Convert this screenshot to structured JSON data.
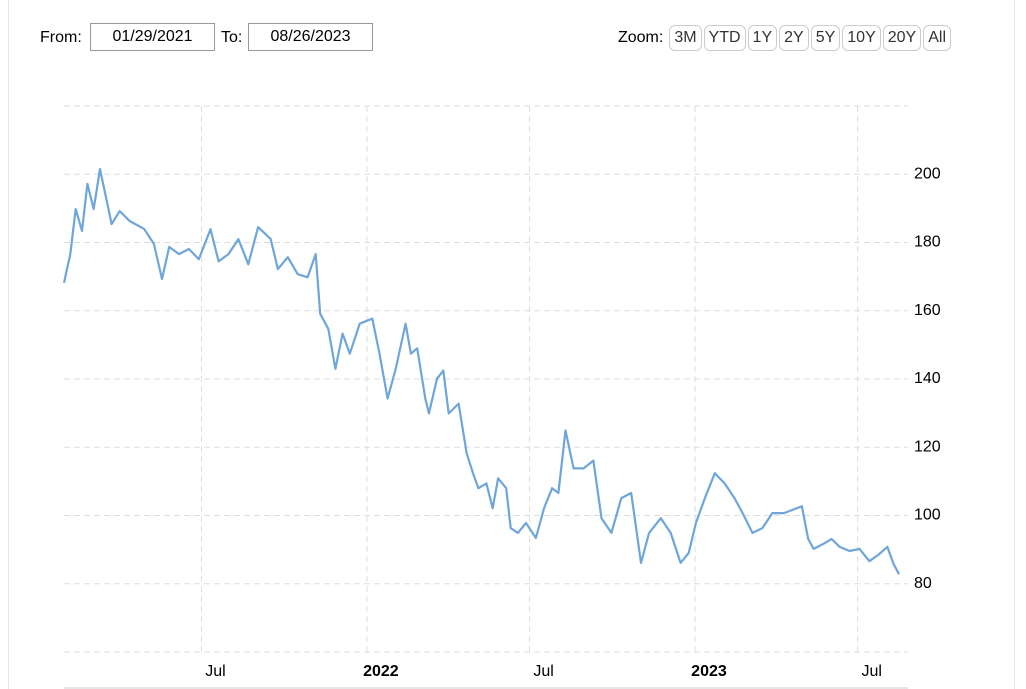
{
  "range_selector": {
    "from_label": "From:",
    "from": "01/29/2021",
    "to_label": "To:",
    "to": "08/26/2023",
    "zoom_label": "Zoom:",
    "zoom_buttons": [
      "3M",
      "YTD",
      "1Y",
      "2Y",
      "5Y",
      "10Y",
      "20Y",
      "All"
    ]
  },
  "chart_data": {
    "type": "line",
    "x": [
      "2021-01-29",
      "2021-02-05",
      "2021-02-11",
      "2021-02-18",
      "2021-02-24",
      "2021-03-03",
      "2021-03-10",
      "2021-03-16",
      "2021-03-23",
      "2021-04-01",
      "2021-04-12",
      "2021-04-28",
      "2021-05-09",
      "2021-05-18",
      "2021-05-26",
      "2021-06-06",
      "2021-06-17",
      "2021-06-28",
      "2021-07-11",
      "2021-07-20",
      "2021-07-31",
      "2021-08-11",
      "2021-08-22",
      "2021-09-02",
      "2021-09-16",
      "2021-09-24",
      "2021-10-05",
      "2021-10-16",
      "2021-10-27",
      "2021-11-05",
      "2021-11-10",
      "2021-11-19",
      "2021-11-27",
      "2021-12-05",
      "2021-12-13",
      "2021-12-24",
      "2022-01-07",
      "2022-01-15",
      "2022-01-24",
      "2022-02-02",
      "2022-02-13",
      "2022-02-19",
      "2022-02-26",
      "2022-03-07",
      "2022-03-11",
      "2022-03-20",
      "2022-03-27",
      "2022-04-02",
      "2022-04-13",
      "2022-04-22",
      "2022-04-29",
      "2022-05-05",
      "2022-05-14",
      "2022-05-21",
      "2022-05-27",
      "2022-06-05",
      "2022-06-10",
      "2022-06-18",
      "2022-06-27",
      "2022-07-08",
      "2022-07-17",
      "2022-07-26",
      "2022-08-02",
      "2022-08-10",
      "2022-08-19",
      "2022-08-30",
      "2022-09-10",
      "2022-09-19",
      "2022-09-30",
      "2022-10-11",
      "2022-10-22",
      "2022-11-02",
      "2022-11-11",
      "2022-11-24",
      "2022-12-05",
      "2022-12-16",
      "2022-12-25",
      "2023-01-02",
      "2023-01-12",
      "2023-01-23",
      "2023-02-03",
      "2023-02-14",
      "2023-02-23",
      "2023-03-06",
      "2023-03-17",
      "2023-03-28",
      "2023-04-10",
      "2023-04-30",
      "2023-05-07",
      "2023-05-13",
      "2023-05-24",
      "2023-06-02",
      "2023-06-11",
      "2023-06-22",
      "2023-07-03",
      "2023-07-14",
      "2023-07-25",
      "2023-08-03",
      "2023-08-10",
      "2023-08-16"
    ],
    "series": [
      {
        "color": "#6fa6da",
        "values": [
          168.2,
          176.6,
          189.8,
          183.4,
          197.2,
          189.8,
          201.5,
          194.2,
          185.4,
          189.2,
          186.3,
          184,
          179.6,
          169.3,
          178.7,
          176.6,
          178.1,
          175.1,
          183.9,
          174.5,
          176.6,
          181,
          173.6,
          184.5,
          181,
          172.2,
          175.7,
          170.7,
          169.8,
          176.6,
          159.1,
          154.7,
          143,
          153.3,
          147.4,
          156.2,
          157.7,
          147.4,
          134.3,
          143,
          156.2,
          147.4,
          149,
          134.3,
          129.9,
          140.1,
          142.5,
          129.9,
          132.8,
          118.2,
          112.4,
          108,
          109.4,
          102.1,
          110.9,
          108,
          96.3,
          94.9,
          97.8,
          93.4,
          102.1,
          108,
          106.6,
          124.9,
          113.8,
          113.8,
          116.1,
          99.2,
          94.9,
          105.1,
          106.6,
          86.1,
          94.9,
          99.2,
          94.9,
          86.1,
          89,
          97.8,
          105.1,
          112.4,
          109.4,
          105.1,
          100.7,
          94.9,
          96.3,
          100.7,
          100.7,
          102.7,
          93.1,
          90.2,
          91.7,
          93.1,
          90.8,
          89.6,
          90.2,
          86.6,
          88.7,
          90.8,
          85.8,
          82.8
        ]
      }
    ],
    "xlim": [
      "2021-01-29",
      "2023-08-26"
    ],
    "xticks": [
      {
        "value": "2021-07-01",
        "label": "Jul"
      },
      {
        "value": "2022-01-01",
        "label": "2022"
      },
      {
        "value": "2022-07-01",
        "label": "Jul"
      },
      {
        "value": "2023-01-01",
        "label": "2023"
      },
      {
        "value": "2023-07-01",
        "label": "Jul"
      }
    ],
    "ylim": [
      60,
      220
    ],
    "yticks": [
      80,
      100,
      120,
      140,
      160,
      180,
      200
    ],
    "grid": true
  }
}
